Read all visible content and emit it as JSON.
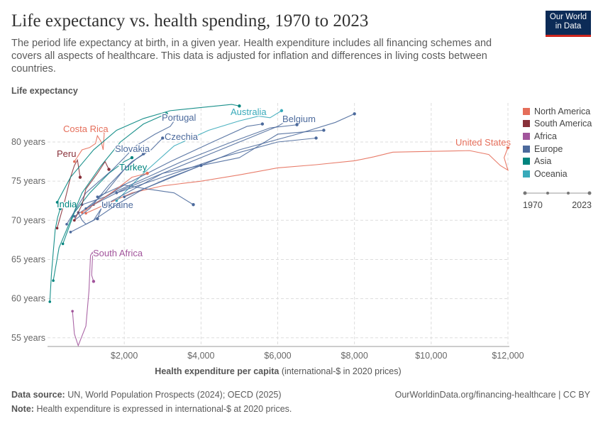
{
  "header": {
    "title": "Life expectancy vs. health spending, 1970 to 2023",
    "subtitle": "The period life expectancy at birth, in a given year. Health expenditure includes all financing schemes and covers all aspects of healthcare. This data is adjusted for inflation and differences in living costs between countries.",
    "logo_line1": "Our World",
    "logo_line2": "in Data"
  },
  "footer": {
    "source_label": "Data source:",
    "source": "UN, World Population Prospects (2024); OECD (2025)",
    "url": "OurWorldinData.org/financing-healthcare | CC BY",
    "note_label": "Note:",
    "note": "Health expenditure is expressed in international-$ at 2020 prices."
  },
  "timeline": {
    "start": "1970",
    "end": "2023"
  },
  "chart_data": {
    "type": "line",
    "title": "Life expectancy vs. health spending, 1970 to 2023",
    "ylabel": "Life expectancy",
    "xlabel_bold": "Health expenditure per capita",
    "xlabel_rest": "(international-$ in 2020 prices)",
    "xlim": [
      0,
      12000
    ],
    "ylim": [
      54,
      85
    ],
    "xticks": [
      {
        "v": 2000,
        "label": "$2,000"
      },
      {
        "v": 4000,
        "label": "$4,000"
      },
      {
        "v": 6000,
        "label": "$6,000"
      },
      {
        "v": 8000,
        "label": "$8,000"
      },
      {
        "v": 10000,
        "label": "$10,000"
      },
      {
        "v": 12000,
        "label": "$12,000"
      }
    ],
    "yticks": [
      {
        "v": 55,
        "label": "55 years"
      },
      {
        "v": 60,
        "label": "60 years"
      },
      {
        "v": 65,
        "label": "65 years"
      },
      {
        "v": 70,
        "label": "70 years"
      },
      {
        "v": 75,
        "label": "75 years"
      },
      {
        "v": 80,
        "label": "80 years"
      }
    ],
    "grid": true,
    "legend_placement": "right",
    "colors": {
      "North America": "#e56e5a",
      "South America": "#883039",
      "Africa": "#a2559c",
      "Europe": "#4c6a9c",
      "Asia": "#00847e",
      "Oceania": "#38aaba"
    },
    "legend": [
      "North America",
      "South America",
      "Africa",
      "Europe",
      "Asia",
      "Oceania"
    ],
    "series": [
      {
        "name": "United States",
        "region": "North America",
        "points": [
          [
            1000,
            70.9
          ],
          [
            1500,
            72
          ],
          [
            2200,
            73.5
          ],
          [
            3000,
            74.4
          ],
          [
            4000,
            75
          ],
          [
            5000,
            75.8
          ],
          [
            6000,
            76.7
          ],
          [
            7000,
            77.1
          ],
          [
            8000,
            77.6
          ],
          [
            8500,
            78.1
          ],
          [
            9000,
            78.7
          ],
          [
            10000,
            78.8
          ],
          [
            11000,
            78.9
          ],
          [
            11500,
            78.4
          ],
          [
            11800,
            77
          ],
          [
            12000,
            76.4
          ],
          [
            11900,
            78
          ],
          [
            12000,
            79.3
          ]
        ]
      },
      {
        "name": "Costa Rica",
        "region": "North America",
        "points": [
          [
            700,
            77.5
          ],
          [
            900,
            79
          ],
          [
            1100,
            79.3
          ],
          [
            1250,
            79.8
          ],
          [
            1300,
            80.8
          ],
          [
            1400,
            80
          ],
          [
            1450,
            79
          ],
          [
            1480,
            81.3
          ]
        ]
      },
      {
        "name": "Peru",
        "region": "South America",
        "points": [
          [
            250,
            69
          ],
          [
            450,
            72.5
          ],
          [
            600,
            75.5
          ],
          [
            700,
            77
          ],
          [
            780,
            77.7
          ],
          [
            850,
            75.5
          ]
        ]
      },
      {
        "name": "South Africa",
        "region": "Africa",
        "points": [
          [
            650,
            58.4
          ],
          [
            700,
            55.5
          ],
          [
            800,
            54
          ],
          [
            1000,
            56.5
          ],
          [
            1080,
            61
          ],
          [
            1120,
            65.5
          ],
          [
            1180,
            66
          ],
          [
            1150,
            63
          ],
          [
            1200,
            62.2
          ]
        ]
      },
      {
        "name": "India",
        "region": "Asia",
        "points": [
          [
            60,
            59.6
          ],
          [
            100,
            63
          ],
          [
            150,
            66
          ],
          [
            200,
            68.8
          ],
          [
            260,
            70.3
          ],
          [
            330,
            71.5
          ]
        ]
      },
      {
        "name": "Turkey",
        "region": "Asia",
        "points": [
          [
            400,
            67
          ],
          [
            700,
            71
          ],
          [
            1100,
            73.5
          ],
          [
            1600,
            76
          ],
          [
            2000,
            77.5
          ],
          [
            2200,
            78
          ]
        ]
      },
      {
        "name": "",
        "region": "Asia",
        "points": [
          [
            250,
            72.3
          ],
          [
            600,
            75.5
          ],
          [
            1200,
            79
          ],
          [
            1800,
            81.5
          ],
          [
            2500,
            83
          ],
          [
            3200,
            84
          ],
          [
            4000,
            84.4
          ],
          [
            4800,
            84.8
          ],
          [
            5000,
            84.6
          ]
        ]
      },
      {
        "name": "",
        "region": "Asia",
        "points": [
          [
            150,
            62.3
          ],
          [
            300,
            66.5
          ],
          [
            600,
            70
          ],
          [
            900,
            73.5
          ],
          [
            1400,
            77
          ],
          [
            1900,
            80
          ],
          [
            2500,
            82.3
          ],
          [
            3100,
            83.6
          ]
        ]
      },
      {
        "name": "Australia",
        "region": "Oceania",
        "points": [
          [
            1800,
            72.5
          ],
          [
            2500,
            76
          ],
          [
            3300,
            79.5
          ],
          [
            4200,
            81.5
          ],
          [
            5000,
            82.7
          ],
          [
            5500,
            83.3
          ],
          [
            5800,
            83.1
          ],
          [
            6100,
            84
          ]
        ]
      },
      {
        "name": "Portugal",
        "region": "Europe",
        "points": [
          [
            500,
            69.5
          ],
          [
            1000,
            73.5
          ],
          [
            1700,
            76.5
          ],
          [
            2300,
            79.5
          ],
          [
            2800,
            81
          ],
          [
            3200,
            82
          ],
          [
            3400,
            83.4
          ]
        ]
      },
      {
        "name": "Belgium",
        "region": "Europe",
        "points": [
          [
            1500,
            72
          ],
          [
            3000,
            76
          ],
          [
            4500,
            79
          ],
          [
            5500,
            81
          ],
          [
            6000,
            82
          ],
          [
            6200,
            82.6
          ]
        ]
      },
      {
        "name": "Czechia",
        "region": "Europe",
        "points": [
          [
            700,
            70
          ],
          [
            1100,
            71.5
          ],
          [
            1600,
            74.5
          ],
          [
            2200,
            77.5
          ],
          [
            2700,
            79
          ],
          [
            3000,
            80.5
          ]
        ]
      },
      {
        "name": "Slovakia",
        "region": "Europe",
        "points": [
          [
            700,
            70.5
          ],
          [
            1000,
            71.5
          ],
          [
            1500,
            73.5
          ],
          [
            2000,
            76.5
          ],
          [
            2300,
            77.8
          ],
          [
            2500,
            78.5
          ]
        ]
      },
      {
        "name": "Ukraine",
        "region": "Europe",
        "points": [
          [
            800,
            71
          ],
          [
            900,
            70
          ],
          [
            1000,
            69.5
          ],
          [
            1200,
            70
          ],
          [
            1400,
            71.5
          ],
          [
            1300,
            70.2
          ]
        ]
      },
      {
        "name": "",
        "region": "Europe",
        "points": [
          [
            2000,
            73
          ],
          [
            3500,
            76
          ],
          [
            5000,
            79
          ],
          [
            6500,
            81
          ],
          [
            7500,
            82.5
          ],
          [
            8000,
            83.6
          ]
        ]
      },
      {
        "name": "",
        "region": "Europe",
        "points": [
          [
            1800,
            73.5
          ],
          [
            3000,
            75.5
          ],
          [
            4500,
            78
          ],
          [
            6000,
            80
          ],
          [
            7000,
            80.5
          ]
        ]
      },
      {
        "name": "",
        "region": "Europe",
        "points": [
          [
            1200,
            72
          ],
          [
            2000,
            74
          ],
          [
            3000,
            76
          ],
          [
            4000,
            77
          ],
          [
            5000,
            78
          ],
          [
            6000,
            81
          ],
          [
            7200,
            81.5
          ]
        ]
      },
      {
        "name": "",
        "region": "Europe",
        "points": [
          [
            1000,
            71.5
          ],
          [
            1700,
            73.5
          ],
          [
            2600,
            75.5
          ],
          [
            3500,
            77.5
          ],
          [
            4800,
            80
          ],
          [
            5800,
            81.8
          ],
          [
            6500,
            82.2
          ]
        ]
      },
      {
        "name": "",
        "region": "Europe",
        "points": [
          [
            1300,
            73
          ],
          [
            2200,
            75
          ],
          [
            3200,
            77.5
          ],
          [
            4300,
            80
          ],
          [
            5200,
            82
          ],
          [
            5600,
            82.3
          ]
        ]
      },
      {
        "name": "",
        "region": "Europe",
        "points": [
          [
            600,
            68.5
          ],
          [
            1200,
            70
          ],
          [
            1800,
            72
          ],
          [
            2500,
            74
          ],
          [
            3200,
            75.5
          ],
          [
            4000,
            77
          ]
        ]
      },
      {
        "name": "",
        "region": "Europe",
        "points": [
          [
            900,
            72
          ],
          [
            1500,
            73
          ],
          [
            2000,
            74.5
          ],
          [
            2600,
            74
          ],
          [
            3300,
            73.5
          ],
          [
            3800,
            72
          ]
        ]
      },
      {
        "name": "",
        "region": "South America",
        "points": [
          [
            700,
            70
          ],
          [
            900,
            72
          ],
          [
            1000,
            74
          ],
          [
            1300,
            76
          ],
          [
            1500,
            77.5
          ],
          [
            1600,
            76.5
          ]
        ]
      },
      {
        "name": "",
        "region": "North America",
        "points": [
          [
            900,
            71
          ],
          [
            1300,
            72.3
          ],
          [
            1800,
            74
          ],
          [
            2200,
            75.5
          ],
          [
            2600,
            76
          ]
        ]
      }
    ]
  }
}
